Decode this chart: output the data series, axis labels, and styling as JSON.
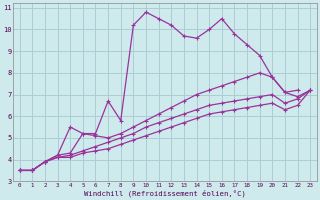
{
  "background_color": "#ceeaed",
  "grid_color": "#aacdd4",
  "line_color": "#993399",
  "xlabel": "Windchill (Refroidissement éolien,°C)",
  "xlim": [
    -0.5,
    23.5
  ],
  "ylim": [
    3,
    11.2
  ],
  "yticks": [
    3,
    4,
    5,
    6,
    7,
    8,
    9,
    10,
    11
  ],
  "xticks": [
    0,
    1,
    2,
    3,
    4,
    5,
    6,
    7,
    8,
    9,
    10,
    11,
    12,
    13,
    14,
    15,
    16,
    17,
    18,
    19,
    20,
    21,
    22,
    23
  ],
  "series": [
    {
      "x": [
        0,
        1,
        2,
        3,
        4,
        5,
        6,
        7,
        8,
        9,
        10,
        11,
        12,
        13,
        14,
        15,
        16,
        17,
        18,
        19,
        20,
        21,
        22
      ],
      "y": [
        3.5,
        3.5,
        3.9,
        4.2,
        5.5,
        5.2,
        5.2,
        6.7,
        5.8,
        10.2,
        10.8,
        10.5,
        10.2,
        9.7,
        9.6,
        10.0,
        10.5,
        9.8,
        9.3,
        8.8,
        7.8,
        7.1,
        7.2
      ]
    },
    {
      "x": [
        0,
        1,
        2,
        3,
        4,
        5,
        6,
        7,
        8,
        9,
        10,
        11,
        12,
        13,
        14,
        15,
        16,
        17,
        18,
        19,
        20,
        21,
        22,
        23
      ],
      "y": [
        3.5,
        3.5,
        3.9,
        4.2,
        4.3,
        5.2,
        5.1,
        5.0,
        5.2,
        5.5,
        5.8,
        6.1,
        6.4,
        6.7,
        7.0,
        7.2,
        7.4,
        7.6,
        7.8,
        8.0,
        7.8,
        7.1,
        6.9,
        7.2
      ]
    },
    {
      "x": [
        0,
        1,
        2,
        3,
        4,
        5,
        6,
        7,
        8,
        9,
        10,
        11,
        12,
        13,
        14,
        15,
        16,
        17,
        18,
        19,
        20,
        21,
        22,
        23
      ],
      "y": [
        3.5,
        3.5,
        3.9,
        4.1,
        4.2,
        4.4,
        4.6,
        4.8,
        5.0,
        5.2,
        5.5,
        5.7,
        5.9,
        6.1,
        6.3,
        6.5,
        6.6,
        6.7,
        6.8,
        6.9,
        7.0,
        6.6,
        6.8,
        7.2
      ]
    },
    {
      "x": [
        0,
        1,
        2,
        3,
        4,
        5,
        6,
        7,
        8,
        9,
        10,
        11,
        12,
        13,
        14,
        15,
        16,
        17,
        18,
        19,
        20,
        21,
        22,
        23
      ],
      "y": [
        3.5,
        3.5,
        3.9,
        4.1,
        4.1,
        4.3,
        4.4,
        4.5,
        4.7,
        4.9,
        5.1,
        5.3,
        5.5,
        5.7,
        5.9,
        6.1,
        6.2,
        6.3,
        6.4,
        6.5,
        6.6,
        6.3,
        6.5,
        7.2
      ]
    }
  ]
}
